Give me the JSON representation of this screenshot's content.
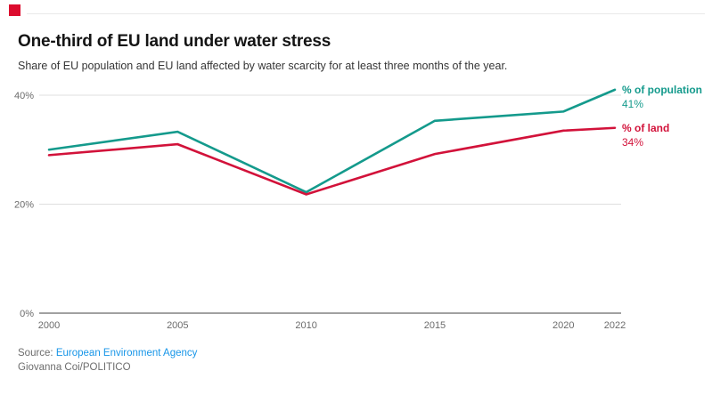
{
  "brand": {
    "mark_color": "#dc0c2e"
  },
  "header": {
    "title": "One-third of EU land under water stress",
    "subtitle": "Share of EU population and EU land affected by water scarcity for at least three months of the year."
  },
  "chart_data": {
    "type": "line",
    "x": [
      2000,
      2005,
      2010,
      2015,
      2020,
      2022
    ],
    "x_tick_labels": [
      "2000",
      "2005",
      "2010",
      "2015",
      "2020",
      "2022"
    ],
    "y_ticks": [
      0,
      20,
      40
    ],
    "y_tick_labels": [
      "0%",
      "20%",
      "40%"
    ],
    "ylim": [
      0,
      44
    ],
    "grid": "horizontal gridlines at each y tick, 0% baseline darker",
    "legend_position": "right of line ends",
    "series": [
      {
        "name": "% of population",
        "color": "#149a8c",
        "values": [
          30,
          33.3,
          22.2,
          35.3,
          37,
          41
        ],
        "end_label": "41%"
      },
      {
        "name": "% of land",
        "color": "#d2123a",
        "values": [
          29,
          31,
          21.8,
          29.2,
          33.5,
          34
        ],
        "end_label": "34%"
      }
    ]
  },
  "footer": {
    "source_prefix": "Source:",
    "source_link_text": "European Environment Agency",
    "byline": "Giovanna Coi/POLITICO",
    "link_color": "#1896e8"
  }
}
